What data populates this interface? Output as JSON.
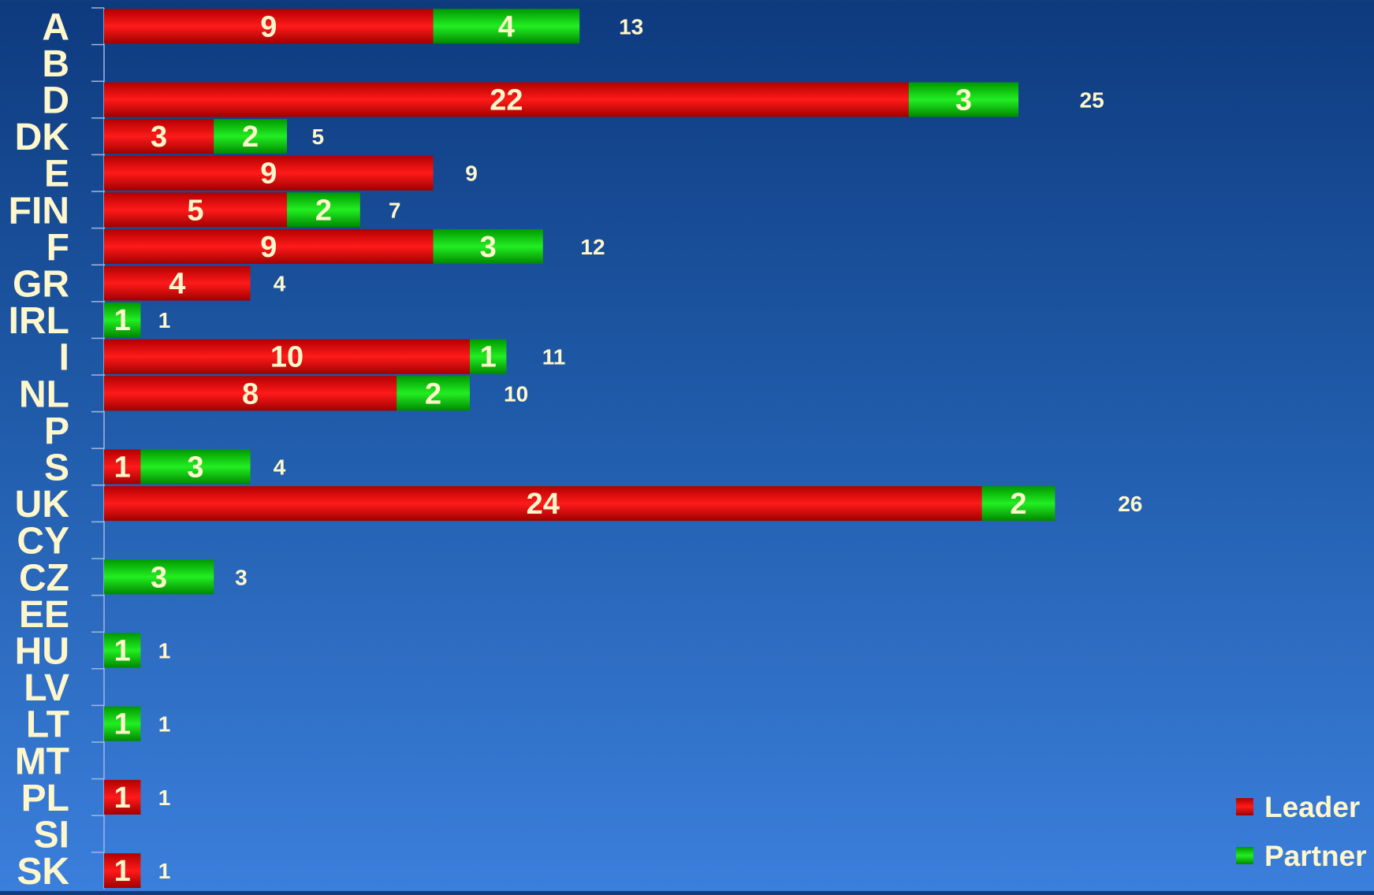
{
  "chart_data": {
    "type": "bar",
    "orientation": "horizontal",
    "stacked": true,
    "categories": [
      "A",
      "B",
      "D",
      "DK",
      "E",
      "FIN",
      "F",
      "GR",
      "IRL",
      "I",
      "NL",
      "P",
      "S",
      "UK",
      "CY",
      "CZ",
      "EE",
      "HU",
      "LV",
      "LT",
      "MT",
      "PL",
      "SI",
      "SK"
    ],
    "series": [
      {
        "name": "Leader",
        "color": "#e00000",
        "values": [
          9,
          0,
          22,
          3,
          9,
          5,
          9,
          4,
          0,
          10,
          8,
          0,
          1,
          24,
          0,
          0,
          0,
          0,
          0,
          0,
          0,
          1,
          0,
          1
        ]
      },
      {
        "name": "Partner",
        "color": "#00cc00",
        "values": [
          4,
          0,
          3,
          2,
          0,
          2,
          3,
          0,
          1,
          1,
          2,
          0,
          3,
          2,
          0,
          3,
          0,
          1,
          0,
          1,
          0,
          0,
          0,
          0
        ]
      }
    ],
    "totals": [
      13,
      0,
      25,
      5,
      9,
      7,
      12,
      4,
      1,
      11,
      10,
      0,
      4,
      26,
      0,
      3,
      0,
      1,
      0,
      1,
      0,
      1,
      0,
      1
    ],
    "xlim": [
      0,
      26
    ],
    "grid": false,
    "legend": {
      "position": "bottom-right",
      "entries": [
        {
          "name": "Leader",
          "color": "#e00000"
        },
        {
          "name": "Partner",
          "color": "#00cc00"
        }
      ]
    }
  }
}
